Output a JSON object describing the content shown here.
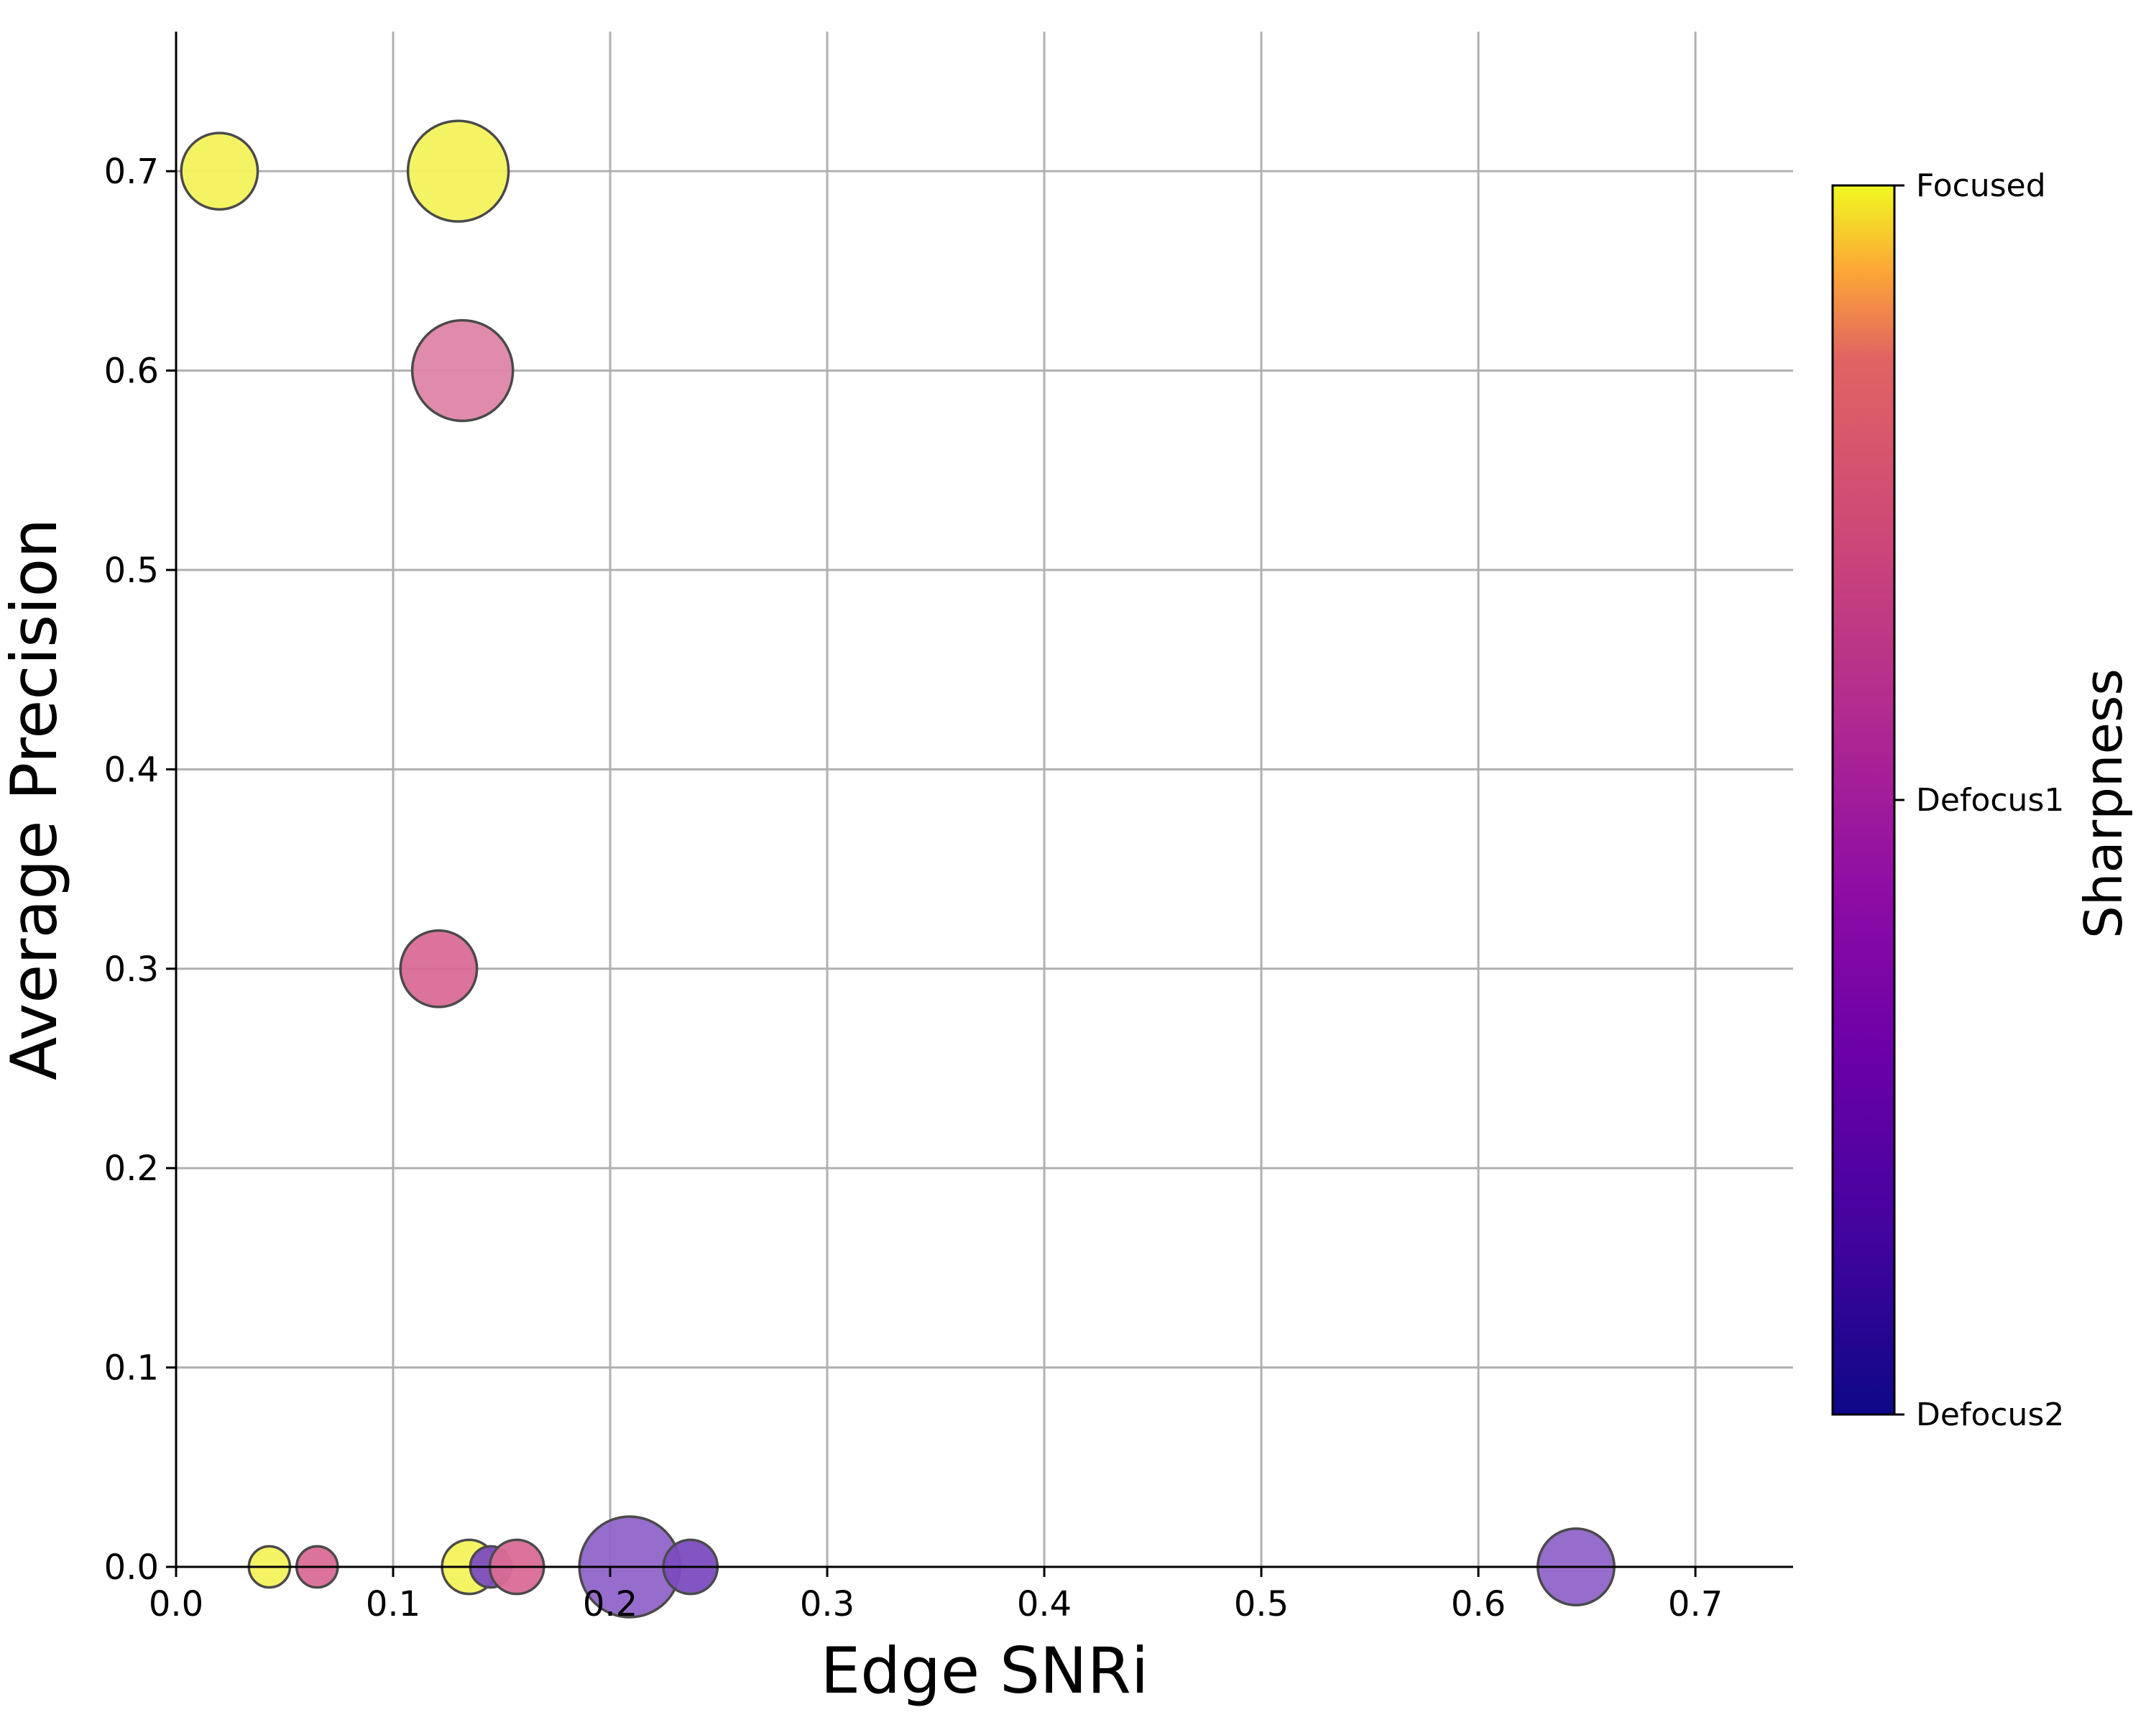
{
  "chart_data": {
    "type": "scatter",
    "title": "",
    "xlabel": "Edge SNRi",
    "ylabel": "Average Precision",
    "xlim": [
      0.0,
      0.745
    ],
    "ylim": [
      0.0,
      0.77
    ],
    "xticks": [
      "0.0",
      "0.1",
      "0.2",
      "0.3",
      "0.4",
      "0.5",
      "0.6",
      "0.7"
    ],
    "yticks": [
      "0.0",
      "0.1",
      "0.2",
      "0.3",
      "0.4",
      "0.5",
      "0.6",
      "0.7"
    ],
    "grid": true,
    "colorbar": {
      "title": "Sharpness",
      "colormap": "plasma",
      "ticks": [
        "Focused",
        "Defocus1",
        "Defocus2"
      ]
    },
    "points": [
      {
        "x": 0.02,
        "y": 0.7,
        "size": 0.26,
        "category": "Focused",
        "color": "#f3f25c"
      },
      {
        "x": 0.13,
        "y": 0.7,
        "size": 0.45,
        "category": "Focused",
        "color": "#f3f25c"
      },
      {
        "x": 0.132,
        "y": 0.6,
        "size": 0.45,
        "category": "Defocus1",
        "color": "#df85a8"
      },
      {
        "x": 0.121,
        "y": 0.3,
        "size": 0.26,
        "category": "Defocus1",
        "color": "#d96c97"
      },
      {
        "x": 0.043,
        "y": 0.0,
        "size": 0.075,
        "category": "Focused",
        "color": "#f3f25c"
      },
      {
        "x": 0.065,
        "y": 0.0,
        "size": 0.075,
        "category": "Defocus1",
        "color": "#d96c97"
      },
      {
        "x": 0.135,
        "y": 0.0,
        "size": 0.13,
        "category": "Focused",
        "color": "#f3f25c"
      },
      {
        "x": 0.145,
        "y": 0.0,
        "size": 0.075,
        "category": "Defocus2",
        "color": "#7c4cc0"
      },
      {
        "x": 0.157,
        "y": 0.0,
        "size": 0.13,
        "category": "Defocus1",
        "color": "#d96c97"
      },
      {
        "x": 0.209,
        "y": 0.0,
        "size": 0.45,
        "category": "Defocus2",
        "color": "#9065c9"
      },
      {
        "x": 0.237,
        "y": 0.0,
        "size": 0.13,
        "category": "Defocus2",
        "color": "#7c4cc0"
      },
      {
        "x": 0.645,
        "y": 0.0,
        "size": 0.26,
        "category": "Defocus2",
        "color": "#9065c9"
      }
    ]
  }
}
